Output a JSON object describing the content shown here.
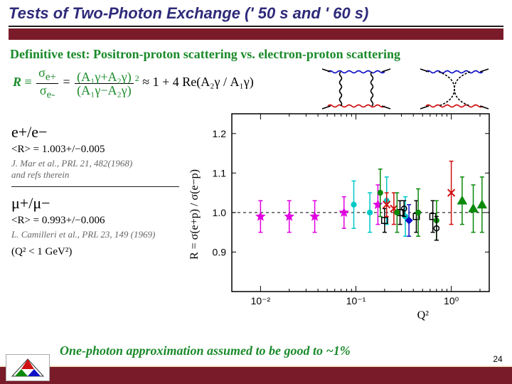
{
  "slide": {
    "title": "Tests of Two-Photon Exchange (' 50 s and ' 60 s)",
    "title_color": "#2e2a7a",
    "accent_color": "#7a1b2a",
    "subtitle": "Definitive test: Positron-proton scattering vs. electron-proton scattering",
    "subtitle_color": "#1a8a2a",
    "page_number": "24",
    "bottom_note": "One-photon approximation assumed to be good to ~1%",
    "bottom_note_color": "#1a8a2a"
  },
  "formula": {
    "lhs_color": "#1a8a2a",
    "R": "R",
    "eq": " ≡ ",
    "sigma_num": "σ",
    "sub_ep": "e+",
    "sub_em": "e-",
    "A_num": "(A₁γ+A₂γ)",
    "A_den": "(A₁γ−A₂γ)",
    "sq": "2",
    "approx": " ≈ 1 + 4 Re(A₂γ / A₁γ)"
  },
  "left_notes": {
    "l1_label": "e+/e−",
    "l1_R": "<R> = 1.003+/−0.005",
    "l1_ref": "J. Mar et al., PRL 21, 482(1968)\n and refs therein",
    "l2_label": "μ+/μ−",
    "l2_R": "<R> = 0.993+/−0.006",
    "l2_ref": "L. Camilleri et al., PRL 23, 149 (1969)",
    "Q2": "(Q² < 1 GeV²)"
  },
  "feynman": {
    "wavy_color": "#1010c8",
    "squiggle_color": "#d01010",
    "line_width": 1.6
  },
  "chart": {
    "type": "scatter",
    "background_color": "#ffffff",
    "frame_color": "#000000",
    "frame_width": 1.5,
    "xlabel": "Q²",
    "ylabel": "R = σ(e+p) / σ(e−p)",
    "xscale": "log",
    "xlim": [
      0.005,
      2.5
    ],
    "xticks": [
      0.01,
      0.1,
      1.0
    ],
    "xtick_labels": [
      "10⁻²",
      "10⁻¹",
      "10⁰"
    ],
    "ylim": [
      0.8,
      1.25
    ],
    "yticks": [
      0.9,
      1.0,
      1.1,
      1.2
    ],
    "ytick_labels": [
      "0.9",
      "1.0",
      "1.1",
      "1.2"
    ],
    "dashed_line_y": 1.0,
    "dashed_color": "#000000",
    "label_fontsize": 16,
    "tick_fontsize": 14,
    "series": [
      {
        "name": "exp1",
        "marker": "star",
        "color": "#e000e0",
        "size": 7,
        "points": [
          {
            "x": 0.01,
            "y": 0.99,
            "eyl": 0.04,
            "eyh": 0.04
          },
          {
            "x": 0.02,
            "y": 0.99,
            "eyl": 0.04,
            "eyh": 0.04
          },
          {
            "x": 0.037,
            "y": 0.99,
            "eyl": 0.04,
            "eyh": 0.04
          },
          {
            "x": 0.075,
            "y": 1.0,
            "eyl": 0.04,
            "eyh": 0.04
          },
          {
            "x": 0.17,
            "y": 1.02,
            "eyl": 0.05,
            "eyh": 0.05
          }
        ]
      },
      {
        "name": "exp2",
        "marker": "circle",
        "color": "#00c8c8",
        "size": 6,
        "points": [
          {
            "x": 0.095,
            "y": 1.02,
            "eyl": 0.06,
            "eyh": 0.06
          },
          {
            "x": 0.14,
            "y": 1.0,
            "eyl": 0.05,
            "eyh": 0.05
          },
          {
            "x": 0.21,
            "y": 1.03,
            "eyl": 0.06,
            "eyh": 0.06
          },
          {
            "x": 0.33,
            "y": 0.99,
            "eyl": 0.05,
            "eyh": 0.05
          }
        ]
      },
      {
        "name": "exp3",
        "marker": "open-square",
        "color": "#000000",
        "size": 7,
        "points": [
          {
            "x": 0.2,
            "y": 0.98,
            "eyl": 0.03,
            "eyh": 0.03
          },
          {
            "x": 0.29,
            "y": 1.0,
            "eyl": 0.03,
            "eyh": 0.03
          },
          {
            "x": 0.43,
            "y": 0.99,
            "eyl": 0.04,
            "eyh": 0.04
          },
          {
            "x": 0.64,
            "y": 0.99,
            "eyl": 0.04,
            "eyh": 0.04
          }
        ]
      },
      {
        "name": "exp4",
        "marker": "cross",
        "color": "#d01010",
        "size": 7,
        "points": [
          {
            "x": 0.21,
            "y": 1.02,
            "eyl": 0.03,
            "eyh": 0.03
          },
          {
            "x": 0.25,
            "y": 1.01,
            "eyl": 0.04,
            "eyh": 0.04
          },
          {
            "x": 1.0,
            "y": 1.05,
            "eyl": 0.08,
            "eyh": 0.08
          }
        ]
      },
      {
        "name": "exp5",
        "marker": "circle",
        "color": "#0a8a0a",
        "size": 6,
        "points": [
          {
            "x": 0.18,
            "y": 1.05,
            "eyl": 0.06,
            "eyh": 0.06
          },
          {
            "x": 0.27,
            "y": 1.0,
            "eyl": 0.05,
            "eyh": 0.05
          },
          {
            "x": 0.45,
            "y": 1.0,
            "eyl": 0.06,
            "eyh": 0.06
          },
          {
            "x": 0.7,
            "y": 0.98,
            "eyl": 0.05,
            "eyh": 0.05
          }
        ]
      },
      {
        "name": "exp6",
        "marker": "open-circle",
        "color": "#000000",
        "size": 6,
        "points": [
          {
            "x": 0.32,
            "y": 1.01,
            "eyl": 0.02,
            "eyh": 0.02
          },
          {
            "x": 0.7,
            "y": 0.96,
            "eyl": 0.03,
            "eyh": 0.03
          }
        ]
      },
      {
        "name": "exp7",
        "marker": "triangle",
        "color": "#0a8a0a",
        "size": 8,
        "points": [
          {
            "x": 1.3,
            "y": 1.03,
            "eyl": 0.06,
            "eyh": 0.06
          },
          {
            "x": 1.7,
            "y": 1.01,
            "eyl": 0.06,
            "eyh": 0.06
          },
          {
            "x": 2.1,
            "y": 1.02,
            "eyl": 0.07,
            "eyh": 0.07
          }
        ]
      },
      {
        "name": "exp8",
        "marker": "diamond",
        "color": "#1010c8",
        "size": 6,
        "points": [
          {
            "x": 0.36,
            "y": 0.98,
            "eyl": 0.04,
            "eyh": 0.04
          }
        ]
      }
    ]
  }
}
